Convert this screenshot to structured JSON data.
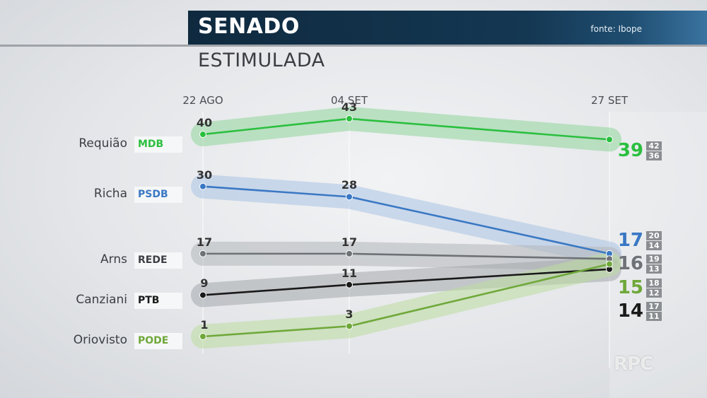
{
  "header": {
    "title": "SENADO",
    "source": "fonte: Ibope"
  },
  "subtitle": "ESTIMULADA",
  "watermark": "RPC",
  "chart_data": {
    "type": "line",
    "title": "SENADO",
    "subtitle": "ESTIMULADA",
    "x": [
      "22 AGO",
      "04 SET",
      "27 SET"
    ],
    "series": [
      {
        "name": "Requião",
        "party": "MDB",
        "color": "#2bbf3f",
        "band": "#8fd69a",
        "values": [
          40,
          43,
          39
        ],
        "final_range": [
          "42",
          "36"
        ]
      },
      {
        "name": "Richa",
        "party": "PSDB",
        "color": "#3a78c4",
        "band": "#a9c2e3",
        "values": [
          30,
          28,
          17
        ],
        "final_range": [
          "20",
          "14"
        ]
      },
      {
        "name": "Arns",
        "party": "REDE",
        "color": "#6e7175",
        "band": "#b3b6ba",
        "values": [
          17,
          17,
          16
        ],
        "final_range": [
          "19",
          "13"
        ]
      },
      {
        "name": "Canziani",
        "party": "PTB",
        "color": "#1a1a1a",
        "band": "#a4a7ab",
        "values": [
          9,
          11,
          14
        ],
        "final_range": [
          "17",
          "11"
        ]
      },
      {
        "name": "Oriovisto",
        "party": "PODE",
        "color": "#6fa83a",
        "band": "#bcdc9f",
        "values": [
          1,
          3,
          15
        ],
        "final_range": [
          "18",
          "12"
        ]
      }
    ],
    "final_display_order": [
      "Requião",
      "Richa",
      "Arns",
      "Oriovisto",
      "Canziani"
    ],
    "grid": false,
    "legend": "left"
  }
}
